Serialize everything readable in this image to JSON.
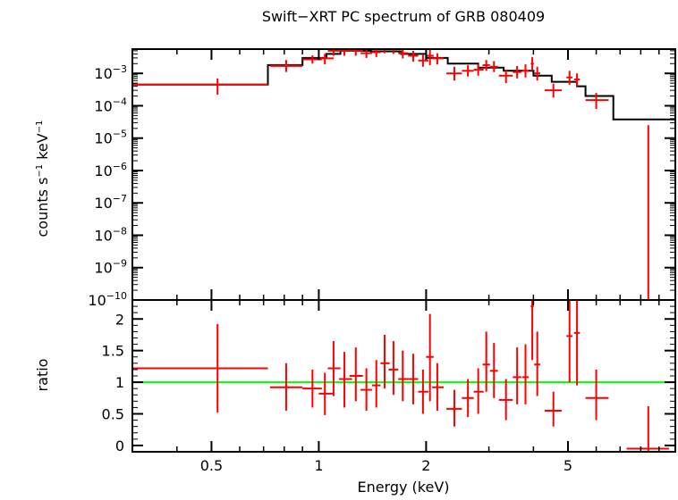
{
  "chart_data": {
    "type": "spectrum",
    "title": "Swift−XRT PC spectrum of GRB 080409",
    "xlabel": "Energy (keV)",
    "x_scale": "log",
    "xlim": [
      0.3,
      10
    ],
    "x_ticks": [
      {
        "value": 0.5,
        "label": "0.5"
      },
      {
        "value": 1,
        "label": "1"
      },
      {
        "value": 2,
        "label": "2"
      },
      {
        "value": 5,
        "label": "5"
      }
    ],
    "colors": {
      "data": "#ff0000",
      "model": "#000000",
      "unity": "#00ff00"
    },
    "top_panel": {
      "ylabel_main": "counts s",
      "ylabel_exp1": "−1",
      "ylabel_mid": " keV",
      "ylabel_exp2": "−1",
      "y_scale": "log",
      "ylim_exp": [
        -10,
        -2.25
      ],
      "y_ticks": [
        {
          "exp": -3,
          "base": "10",
          "sup": "−3"
        },
        {
          "exp": -4,
          "base": "10",
          "sup": "−4"
        },
        {
          "exp": -5,
          "base": "10",
          "sup": "−5"
        },
        {
          "exp": -6,
          "base": "10",
          "sup": "−6"
        },
        {
          "exp": -7,
          "base": "10",
          "sup": "−7"
        },
        {
          "exp": -8,
          "base": "10",
          "sup": "−8"
        },
        {
          "exp": -9,
          "base": "10",
          "sup": "−9"
        },
        {
          "exp": -10,
          "base": "10",
          "sup": "−10"
        }
      ],
      "model_steps": [
        [
          0.3,
          0.72,
          0.00045
        ],
        [
          0.72,
          0.9,
          0.0018
        ],
        [
          0.9,
          1.05,
          0.003
        ],
        [
          1.05,
          1.15,
          0.004
        ],
        [
          1.15,
          1.4,
          0.005
        ],
        [
          1.4,
          1.7,
          0.0048
        ],
        [
          1.7,
          2.0,
          0.004
        ],
        [
          2.0,
          2.3,
          0.003
        ],
        [
          2.3,
          2.8,
          0.002
        ],
        [
          2.8,
          3.3,
          0.0015
        ],
        [
          3.3,
          4.0,
          0.0012
        ],
        [
          4.0,
          4.5,
          0.00085
        ],
        [
          4.5,
          5.3,
          0.00055
        ],
        [
          5.3,
          5.6,
          0.0004
        ],
        [
          5.6,
          6.7,
          0.0002
        ],
        [
          6.7,
          10.0,
          3.8e-05
        ]
      ],
      "points": [
        {
          "x": 0.52,
          "xlo": 0.3,
          "xhi": 0.72,
          "y": 0.00045,
          "ylo": 0.00022,
          "yhi": 0.0007
        },
        {
          "x": 0.81,
          "xlo": 0.73,
          "xhi": 0.9,
          "y": 0.0017,
          "ylo": 0.0011,
          "yhi": 0.0026
        },
        {
          "x": 0.96,
          "xlo": 0.9,
          "xhi": 1.02,
          "y": 0.0027,
          "ylo": 0.002,
          "yhi": 0.0036
        },
        {
          "x": 1.04,
          "xlo": 1.0,
          "xhi": 1.1,
          "y": 0.0029,
          "ylo": 0.0019,
          "yhi": 0.004
        },
        {
          "x": 1.1,
          "xlo": 1.06,
          "xhi": 1.15,
          "y": 0.005,
          "ylo": 0.0035,
          "yhi": 0.007
        },
        {
          "x": 1.18,
          "xlo": 1.14,
          "xhi": 1.24,
          "y": 0.005,
          "ylo": 0.0035,
          "yhi": 0.007
        },
        {
          "x": 1.27,
          "xlo": 1.22,
          "xhi": 1.33,
          "y": 0.005,
          "ylo": 0.0035,
          "yhi": 0.007
        },
        {
          "x": 1.36,
          "xlo": 1.31,
          "xhi": 1.41,
          "y": 0.0042,
          "ylo": 0.003,
          "yhi": 0.006
        },
        {
          "x": 1.45,
          "xlo": 1.41,
          "xhi": 1.49,
          "y": 0.0045,
          "ylo": 0.0032,
          "yhi": 0.0065
        },
        {
          "x": 1.53,
          "xlo": 1.49,
          "xhi": 1.58,
          "y": 0.006,
          "ylo": 0.0042,
          "yhi": 0.0085
        },
        {
          "x": 1.62,
          "xlo": 1.57,
          "xhi": 1.67,
          "y": 0.006,
          "ylo": 0.004,
          "yhi": 0.008
        },
        {
          "x": 1.72,
          "xlo": 1.67,
          "xhi": 1.78,
          "y": 0.0042,
          "ylo": 0.0029,
          "yhi": 0.006
        },
        {
          "x": 1.84,
          "xlo": 1.78,
          "xhi": 1.9,
          "y": 0.0035,
          "ylo": 0.0023,
          "yhi": 0.005
        },
        {
          "x": 1.96,
          "xlo": 1.9,
          "xhi": 2.03,
          "y": 0.0025,
          "ylo": 0.0016,
          "yhi": 0.0038
        },
        {
          "x": 2.05,
          "xlo": 2.0,
          "xhi": 2.1,
          "y": 0.0035,
          "ylo": 0.0018,
          "yhi": 0.006
        },
        {
          "x": 2.15,
          "xlo": 2.08,
          "xhi": 2.24,
          "y": 0.0029,
          "ylo": 0.0019,
          "yhi": 0.0042
        },
        {
          "x": 2.4,
          "xlo": 2.28,
          "xhi": 2.52,
          "y": 0.001,
          "ylo": 0.0006,
          "yhi": 0.0016
        },
        {
          "x": 2.62,
          "xlo": 2.52,
          "xhi": 2.72,
          "y": 0.0012,
          "ylo": 0.0008,
          "yhi": 0.0018
        },
        {
          "x": 2.8,
          "xlo": 2.72,
          "xhi": 2.9,
          "y": 0.0013,
          "ylo": 0.00085,
          "yhi": 0.0019
        },
        {
          "x": 2.95,
          "xlo": 2.88,
          "xhi": 3.02,
          "y": 0.0018,
          "ylo": 0.0012,
          "yhi": 0.0026
        },
        {
          "x": 3.1,
          "xlo": 3.02,
          "xhi": 3.18,
          "y": 0.0016,
          "ylo": 0.0011,
          "yhi": 0.0024
        },
        {
          "x": 3.35,
          "xlo": 3.2,
          "xhi": 3.5,
          "y": 0.00085,
          "ylo": 0.0005,
          "yhi": 0.0013
        },
        {
          "x": 3.6,
          "xlo": 3.5,
          "xhi": 3.7,
          "y": 0.0011,
          "ylo": 0.0007,
          "yhi": 0.0017
        },
        {
          "x": 3.8,
          "xlo": 3.72,
          "xhi": 3.88,
          "y": 0.0012,
          "ylo": 0.00075,
          "yhi": 0.0019
        },
        {
          "x": 3.97,
          "xlo": 3.93,
          "xhi": 4.01,
          "y": 0.002,
          "ylo": 0.0012,
          "yhi": 0.0032
        },
        {
          "x": 4.1,
          "xlo": 4.02,
          "xhi": 4.18,
          "y": 0.001,
          "ylo": 0.0006,
          "yhi": 0.0016
        },
        {
          "x": 4.55,
          "xlo": 4.3,
          "xhi": 4.8,
          "y": 0.0003,
          "ylo": 0.00018,
          "yhi": 0.00048
        },
        {
          "x": 5.05,
          "xlo": 4.95,
          "xhi": 5.15,
          "y": 0.00075,
          "ylo": 0.00045,
          "yhi": 0.0012
        },
        {
          "x": 5.3,
          "xlo": 5.2,
          "xhi": 5.4,
          "y": 0.00065,
          "ylo": 0.0004,
          "yhi": 0.001
        },
        {
          "x": 6.0,
          "xlo": 5.6,
          "xhi": 6.5,
          "y": 0.00015,
          "ylo": 8e-05,
          "yhi": 0.00025
        },
        {
          "x": 8.4,
          "xlo": 8.38,
          "xhi": 8.42,
          "y": 1e-10,
          "ylo": 1e-10,
          "yhi": 2.5e-05
        }
      ]
    },
    "bottom_panel": {
      "ylabel": "ratio",
      "ylim": [
        -0.1,
        2.3
      ],
      "y_ticks": [
        {
          "value": 0,
          "label": "0"
        },
        {
          "value": 0.5,
          "label": "0.5"
        },
        {
          "value": 1,
          "label": "1"
        },
        {
          "value": 1.5,
          "label": "1.5"
        },
        {
          "value": 2,
          "label": "2"
        }
      ],
      "unity_line": 1,
      "points": [
        {
          "x": 0.52,
          "xlo": 0.3,
          "xhi": 0.72,
          "y": 1.22,
          "ylo": 0.52,
          "yhi": 1.92
        },
        {
          "x": 0.81,
          "xlo": 0.73,
          "xhi": 0.9,
          "y": 0.92,
          "ylo": 0.55,
          "yhi": 1.3
        },
        {
          "x": 0.96,
          "xlo": 0.9,
          "xhi": 1.02,
          "y": 0.9,
          "ylo": 0.6,
          "yhi": 1.2
        },
        {
          "x": 1.04,
          "xlo": 1.0,
          "xhi": 1.1,
          "y": 0.82,
          "ylo": 0.48,
          "yhi": 1.15
        },
        {
          "x": 1.1,
          "xlo": 1.06,
          "xhi": 1.15,
          "y": 1.22,
          "ylo": 0.78,
          "yhi": 1.65
        },
        {
          "x": 1.18,
          "xlo": 1.14,
          "xhi": 1.24,
          "y": 1.05,
          "ylo": 0.6,
          "yhi": 1.48
        },
        {
          "x": 1.27,
          "xlo": 1.22,
          "xhi": 1.33,
          "y": 1.1,
          "ylo": 0.7,
          "yhi": 1.55
        },
        {
          "x": 1.36,
          "xlo": 1.31,
          "xhi": 1.41,
          "y": 0.88,
          "ylo": 0.55,
          "yhi": 1.22
        },
        {
          "x": 1.45,
          "xlo": 1.41,
          "xhi": 1.49,
          "y": 0.95,
          "ylo": 0.6,
          "yhi": 1.35
        },
        {
          "x": 1.53,
          "xlo": 1.49,
          "xhi": 1.58,
          "y": 1.3,
          "ylo": 0.9,
          "yhi": 1.75
        },
        {
          "x": 1.62,
          "xlo": 1.57,
          "xhi": 1.67,
          "y": 1.2,
          "ylo": 0.8,
          "yhi": 1.65
        },
        {
          "x": 1.72,
          "xlo": 1.67,
          "xhi": 1.78,
          "y": 1.05,
          "ylo": 0.7,
          "yhi": 1.5
        },
        {
          "x": 1.84,
          "xlo": 1.78,
          "xhi": 1.9,
          "y": 1.05,
          "ylo": 0.65,
          "yhi": 1.45
        },
        {
          "x": 1.96,
          "xlo": 1.9,
          "xhi": 2.03,
          "y": 0.85,
          "ylo": 0.5,
          "yhi": 1.2
        },
        {
          "x": 2.05,
          "xlo": 2.0,
          "xhi": 2.1,
          "y": 1.4,
          "ylo": 0.7,
          "yhi": 2.08
        },
        {
          "x": 2.15,
          "xlo": 2.08,
          "xhi": 2.24,
          "y": 0.92,
          "ylo": 0.55,
          "yhi": 1.3
        },
        {
          "x": 2.4,
          "xlo": 2.28,
          "xhi": 2.52,
          "y": 0.58,
          "ylo": 0.3,
          "yhi": 0.88
        },
        {
          "x": 2.62,
          "xlo": 2.52,
          "xhi": 2.72,
          "y": 0.75,
          "ylo": 0.45,
          "yhi": 1.05
        },
        {
          "x": 2.8,
          "xlo": 2.72,
          "xhi": 2.9,
          "y": 0.85,
          "ylo": 0.5,
          "yhi": 1.22
        },
        {
          "x": 2.95,
          "xlo": 2.88,
          "xhi": 3.02,
          "y": 1.28,
          "ylo": 0.85,
          "yhi": 1.8
        },
        {
          "x": 3.1,
          "xlo": 3.02,
          "xhi": 3.18,
          "y": 1.18,
          "ylo": 0.75,
          "yhi": 1.62
        },
        {
          "x": 3.35,
          "xlo": 3.2,
          "xhi": 3.5,
          "y": 0.72,
          "ylo": 0.4,
          "yhi": 1.05
        },
        {
          "x": 3.6,
          "xlo": 3.5,
          "xhi": 3.7,
          "y": 1.08,
          "ylo": 0.65,
          "yhi": 1.55
        },
        {
          "x": 3.8,
          "xlo": 3.72,
          "xhi": 3.88,
          "y": 1.08,
          "ylo": 0.65,
          "yhi": 1.6
        },
        {
          "x": 3.97,
          "xlo": 3.93,
          "xhi": 4.01,
          "y": 2.2,
          "ylo": 1.35,
          "yhi": 2.3
        },
        {
          "x": 4.1,
          "xlo": 4.02,
          "xhi": 4.18,
          "y": 1.28,
          "ylo": 0.78,
          "yhi": 1.8
        },
        {
          "x": 4.55,
          "xlo": 4.3,
          "xhi": 4.8,
          "y": 0.55,
          "ylo": 0.3,
          "yhi": 0.85
        },
        {
          "x": 5.05,
          "xlo": 4.95,
          "xhi": 5.15,
          "y": 1.73,
          "ylo": 1.0,
          "yhi": 2.3
        },
        {
          "x": 5.3,
          "xlo": 5.2,
          "xhi": 5.4,
          "y": 1.78,
          "ylo": 0.95,
          "yhi": 2.3
        },
        {
          "x": 6.0,
          "xlo": 5.6,
          "xhi": 6.5,
          "y": 0.75,
          "ylo": 0.4,
          "yhi": 1.2
        },
        {
          "x": 8.4,
          "xlo": 7.3,
          "xhi": 9.6,
          "y": -0.05,
          "ylo": -0.1,
          "yhi": 0.62
        }
      ]
    }
  }
}
